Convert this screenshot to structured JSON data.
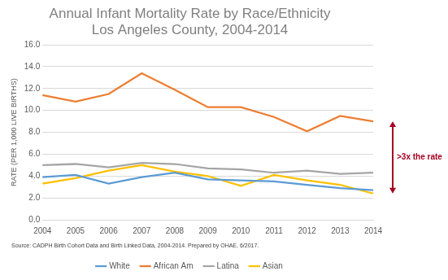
{
  "chart_data": {
    "type": "line",
    "title": [
      "Annual Infant Mortality Rate by Race/Ethnicity",
      "Los Angeles County, 2004-2014"
    ],
    "y_label": "RATE (PER 1,000 LIVE BIRTHS)",
    "source": "Source: CADPH Birth Cohort Data and Birth Linked Data, 2004-2014. Prepared by OHAE, 6/2017.",
    "categories": [
      "2004",
      "2005",
      "2006",
      "2007",
      "2008",
      "2009",
      "2010",
      "2011",
      "2012",
      "2013",
      "2014"
    ],
    "series": [
      {
        "name": "White",
        "color": "#5b9bd5",
        "values": [
          3.9,
          4.1,
          3.3,
          3.9,
          4.3,
          3.7,
          3.6,
          3.5,
          3.2,
          2.9,
          2.7
        ]
      },
      {
        "name": "African Am",
        "color": "#ed7d31",
        "values": [
          11.4,
          10.8,
          11.5,
          13.4,
          11.9,
          10.3,
          10.3,
          9.4,
          8.1,
          9.5,
          9.0
        ]
      },
      {
        "name": "Latina",
        "color": "#a5a5a5",
        "values": [
          5.0,
          5.1,
          4.8,
          5.2,
          5.1,
          4.7,
          4.6,
          4.3,
          4.5,
          4.2,
          4.3
        ]
      },
      {
        "name": "Asian",
        "color": "#ffc000",
        "values": [
          3.3,
          3.8,
          4.5,
          5.0,
          4.4,
          4.0,
          3.1,
          4.1,
          3.6,
          3.2,
          2.4
        ]
      }
    ],
    "ylim": [
      0,
      16
    ],
    "yticks": [
      {
        "value": 0,
        "label": "0.0"
      },
      {
        "value": 2,
        "label": "2.0"
      },
      {
        "value": 4,
        "label": "4.0"
      },
      {
        "value": 6,
        "label": "6.0"
      },
      {
        "value": 8,
        "label": "8.0"
      },
      {
        "value": 10,
        "label": "10.0"
      },
      {
        "value": 12,
        "label": "12.0"
      },
      {
        "value": 14,
        "label": "14.0"
      },
      {
        "value": 16,
        "label": "16.0"
      }
    ],
    "grid": true,
    "legend": "bottom",
    "annotations": [
      {
        "text": ">3x the rate",
        "x": "2014"
      }
    ]
  }
}
